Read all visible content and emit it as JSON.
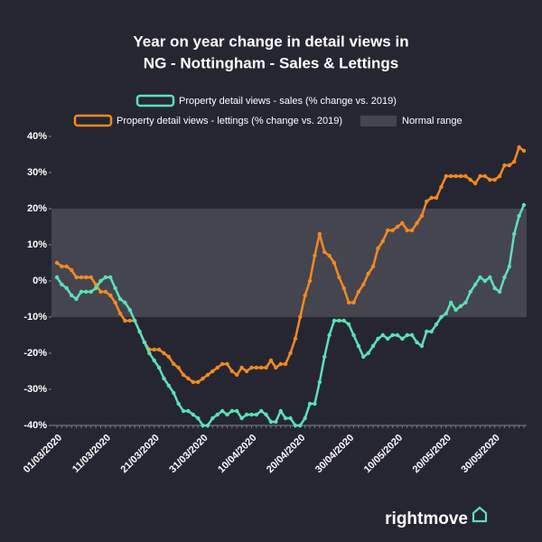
{
  "chart_data": {
    "type": "line",
    "title_lines": [
      "Year on year change in detail views in",
      "NG - Nottingham - Sales & Lettings"
    ],
    "x": [
      "01/03/2020",
      "02/03/2020",
      "03/03/2020",
      "04/03/2020",
      "05/03/2020",
      "06/03/2020",
      "07/03/2020",
      "08/03/2020",
      "09/03/2020",
      "10/03/2020",
      "11/03/2020",
      "12/03/2020",
      "13/03/2020",
      "14/03/2020",
      "15/03/2020",
      "16/03/2020",
      "17/03/2020",
      "18/03/2020",
      "19/03/2020",
      "20/03/2020",
      "21/03/2020",
      "22/03/2020",
      "23/03/2020",
      "24/03/2020",
      "25/03/2020",
      "26/03/2020",
      "27/03/2020",
      "28/03/2020",
      "29/03/2020",
      "30/03/2020",
      "31/03/2020",
      "01/04/2020",
      "02/04/2020",
      "03/04/2020",
      "04/04/2020",
      "05/04/2020",
      "06/04/2020",
      "07/04/2020",
      "08/04/2020",
      "09/04/2020",
      "10/04/2020",
      "11/04/2020",
      "12/04/2020",
      "13/04/2020",
      "14/04/2020",
      "15/04/2020",
      "16/04/2020",
      "17/04/2020",
      "18/04/2020",
      "19/04/2020",
      "20/04/2020",
      "21/04/2020",
      "22/04/2020",
      "23/04/2020",
      "24/04/2020",
      "25/04/2020",
      "26/04/2020",
      "27/04/2020",
      "28/04/2020",
      "29/04/2020",
      "30/04/2020",
      "01/05/2020",
      "02/05/2020",
      "03/05/2020",
      "04/05/2020",
      "05/05/2020",
      "06/05/2020",
      "07/05/2020",
      "08/05/2020",
      "09/05/2020",
      "10/05/2020",
      "11/05/2020",
      "12/05/2020",
      "13/05/2020",
      "14/05/2020",
      "15/05/2020",
      "16/05/2020",
      "17/05/2020",
      "18/05/2020",
      "19/05/2020",
      "20/05/2020",
      "21/05/2020",
      "22/05/2020",
      "23/05/2020",
      "24/05/2020",
      "25/05/2020",
      "26/05/2020",
      "27/05/2020",
      "28/05/2020",
      "29/05/2020",
      "30/05/2020",
      "31/05/2020",
      "01/06/2020",
      "02/06/2020",
      "03/06/2020",
      "04/06/2020",
      "05/06/2020"
    ],
    "xticks": [
      "01/03/2020",
      "11/03/2020",
      "21/03/2020",
      "31/03/2020",
      "10/04/2020",
      "20/04/2020",
      "30/04/2020",
      "10/05/2020",
      "20/05/2020",
      "30/05/2020"
    ],
    "series": [
      {
        "name": "Property detail views - sales (% change vs. 2019)",
        "color": "#5ee0b6",
        "values": [
          1,
          -1,
          -2,
          -4,
          -5,
          -3,
          -3,
          -3,
          -2,
          0,
          1,
          1,
          -2,
          -5,
          -6,
          -8,
          -11,
          -14,
          -17,
          -20,
          -22,
          -24,
          -27,
          -29,
          -31,
          -34,
          -36,
          -36,
          -37,
          -38,
          -40,
          -40,
          -38,
          -37,
          -36,
          -37,
          -36,
          -36,
          -38,
          -37,
          -37,
          -37,
          -36,
          -37,
          -39,
          -39,
          -36,
          -38,
          -38,
          -40,
          -40,
          -38,
          -34,
          -34,
          -28,
          -21,
          -15,
          -11,
          -11,
          -11,
          -12,
          -15,
          -18,
          -21,
          -20,
          -18,
          -16,
          -15,
          -16,
          -15,
          -15,
          -16,
          -15,
          -15,
          -17,
          -18,
          -14,
          -14,
          -12,
          -10,
          -9,
          -6,
          -8,
          -7,
          -6,
          -3,
          -1,
          1,
          0,
          1,
          -2,
          -3,
          1,
          4,
          13,
          18,
          21
        ]
      },
      {
        "name": "Property detail views - lettings (% change vs. 2019)",
        "color": "#f28a22",
        "values": [
          5,
          4,
          4,
          3,
          1,
          1,
          1,
          1,
          -1,
          -3,
          -3,
          -4,
          -6,
          -9,
          -11,
          -11,
          -11,
          -14,
          -17,
          -19,
          -19,
          -19,
          -20,
          -21,
          -23,
          -24,
          -26,
          -27,
          -28,
          -28,
          -27,
          -26,
          -25,
          -24,
          -23,
          -23,
          -25,
          -26,
          -24,
          -25,
          -24,
          -24,
          -24,
          -24,
          -22,
          -24,
          -23,
          -23,
          -20,
          -16,
          -10,
          -4,
          0,
          7,
          13,
          8,
          7,
          5,
          1,
          -2,
          -6,
          -6,
          -3,
          -1,
          2,
          4,
          9,
          11,
          14,
          14,
          15,
          16,
          14,
          14,
          16,
          18,
          22,
          23,
          23,
          26,
          29,
          29,
          29,
          29,
          29,
          28,
          27,
          29,
          29,
          28,
          28,
          29,
          32,
          32,
          33,
          37,
          36
        ]
      }
    ],
    "normal_range": {
      "name": "Normal range",
      "range": [
        -10,
        20
      ],
      "color": "#45454f"
    },
    "ylim": [
      -40,
      40
    ],
    "yticks": [
      {
        "value": 40,
        "label": "40%"
      },
      {
        "value": 30,
        "label": "30%"
      },
      {
        "value": 20,
        "label": "20%"
      },
      {
        "value": 10,
        "label": "10%"
      },
      {
        "value": 0,
        "label": "0%"
      },
      {
        "value": -10,
        "label": "-10%"
      },
      {
        "value": -20,
        "label": "-20%"
      },
      {
        "value": -30,
        "label": "-30%"
      },
      {
        "value": -40,
        "label": "-40%"
      }
    ],
    "logo": "rightmove"
  }
}
